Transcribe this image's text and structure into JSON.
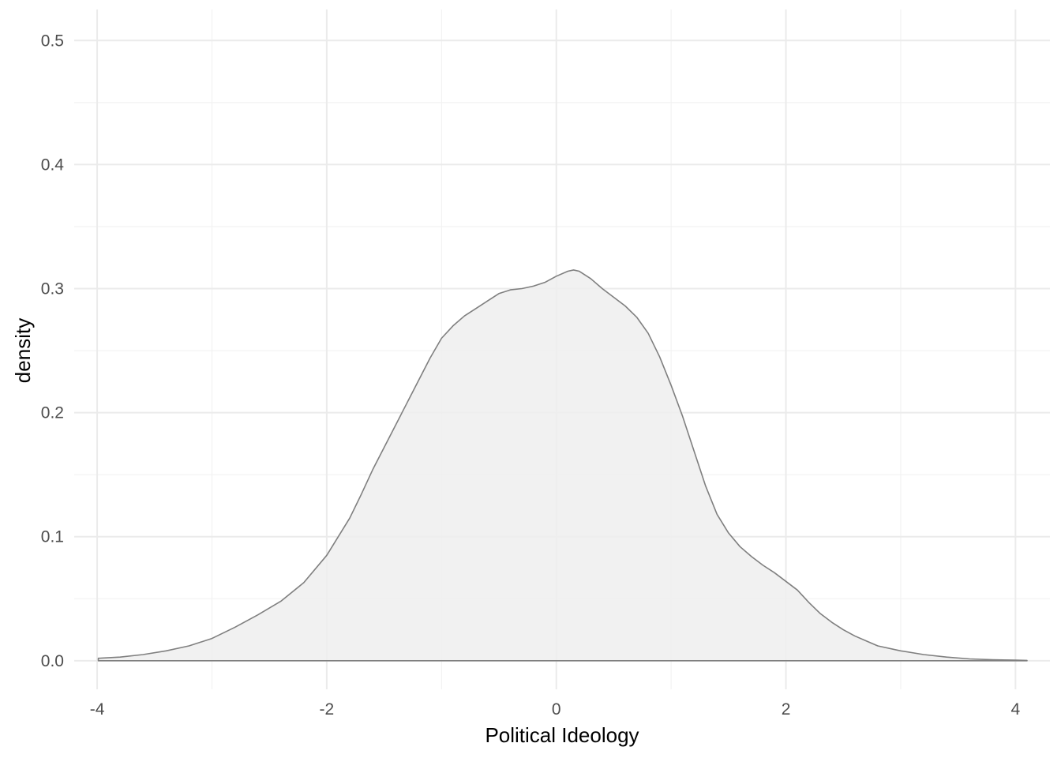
{
  "chart_data": {
    "type": "area",
    "title": "",
    "xlabel": "Political Ideology",
    "ylabel": "density",
    "xlim": [
      -4.2,
      4.3
    ],
    "ylim": [
      -0.023,
      0.525
    ],
    "x_ticks": [
      -4,
      -2,
      0,
      2,
      4
    ],
    "x_tick_labels": [
      "-4",
      "-2",
      "0",
      "2",
      "4"
    ],
    "x_minor_ticks": [
      -3,
      -1,
      1,
      3
    ],
    "y_ticks": [
      0.0,
      0.1,
      0.2,
      0.3,
      0.4,
      0.5
    ],
    "y_tick_labels": [
      "0.0",
      "0.1",
      "0.2",
      "0.3",
      "0.4",
      "0.5"
    ],
    "y_minor_ticks": [
      0.05,
      0.15,
      0.25,
      0.35,
      0.45
    ],
    "grid": true,
    "legend": "none",
    "fill_color": "#efefef",
    "line_color": "#7f7f7f",
    "series": [
      {
        "x": [
          -3.99,
          -3.8,
          -3.6,
          -3.4,
          -3.2,
          -3.0,
          -2.8,
          -2.6,
          -2.4,
          -2.2,
          -2.0,
          -1.8,
          -1.7,
          -1.6,
          -1.5,
          -1.4,
          -1.3,
          -1.2,
          -1.1,
          -1.0,
          -0.9,
          -0.8,
          -0.7,
          -0.6,
          -0.5,
          -0.4,
          -0.3,
          -0.2,
          -0.1,
          0.0,
          0.1,
          0.15,
          0.2,
          0.3,
          0.4,
          0.5,
          0.6,
          0.7,
          0.8,
          0.9,
          1.0,
          1.1,
          1.2,
          1.3,
          1.4,
          1.5,
          1.6,
          1.7,
          1.8,
          1.9,
          2.0,
          2.1,
          2.2,
          2.3,
          2.4,
          2.5,
          2.6,
          2.7,
          2.8,
          3.0,
          3.2,
          3.4,
          3.6,
          3.8,
          4.0,
          4.1
        ],
        "y": [
          0.002,
          0.003,
          0.005,
          0.008,
          0.012,
          0.018,
          0.027,
          0.037,
          0.048,
          0.063,
          0.085,
          0.115,
          0.134,
          0.154,
          0.172,
          0.19,
          0.208,
          0.226,
          0.244,
          0.26,
          0.27,
          0.278,
          0.284,
          0.29,
          0.296,
          0.299,
          0.3,
          0.302,
          0.305,
          0.31,
          0.314,
          0.315,
          0.314,
          0.308,
          0.3,
          0.293,
          0.286,
          0.277,
          0.264,
          0.245,
          0.222,
          0.197,
          0.169,
          0.141,
          0.118,
          0.103,
          0.092,
          0.084,
          0.077,
          0.071,
          0.064,
          0.057,
          0.047,
          0.038,
          0.031,
          0.025,
          0.02,
          0.016,
          0.012,
          0.008,
          0.005,
          0.003,
          0.0015,
          0.0008,
          0.0005,
          0.0003
        ]
      }
    ]
  }
}
